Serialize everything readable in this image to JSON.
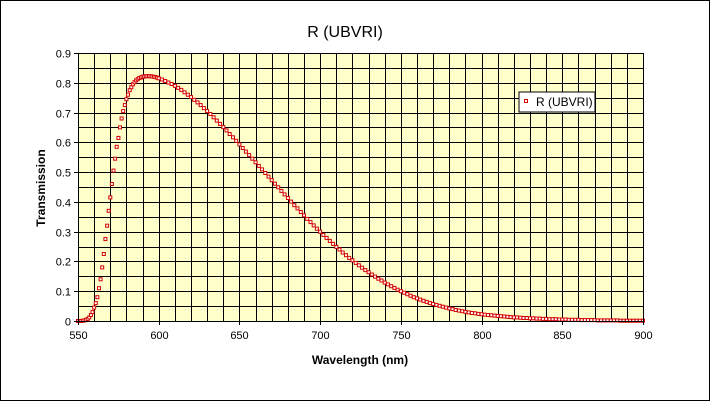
{
  "chart_data": {
    "type": "scatter",
    "title": "R (UBVRI)",
    "xlabel": "Wavelength (nm)",
    "ylabel": "Transmission",
    "xlim": [
      550,
      900
    ],
    "ylim": [
      0,
      0.9
    ],
    "x_ticks": [
      550,
      600,
      650,
      700,
      750,
      800,
      850,
      900
    ],
    "y_ticks": [
      0,
      0.1,
      0.2,
      0.3,
      0.4,
      0.5,
      0.6,
      0.7,
      0.8,
      0.9
    ],
    "y_tick_labels": [
      "0",
      "0.1",
      "0.2",
      "0.3",
      "0.4",
      "0.5",
      "0.6",
      "0.7",
      "0.8",
      "0.9"
    ],
    "x_minor_step": 10,
    "y_minor_step": 0.05,
    "grid": true,
    "legend": {
      "position": "upper-right",
      "entries": [
        "R (UBVRI)"
      ]
    },
    "colors": {
      "plot_background": "#ffffcc",
      "series": "#d40000"
    },
    "series": [
      {
        "name": "R (UBVRI)",
        "x": [
          550,
          551,
          552,
          553,
          554,
          555,
          556,
          557,
          558,
          559,
          560,
          561,
          562,
          563,
          564,
          565,
          566,
          567,
          568,
          569,
          570,
          571,
          572,
          573,
          574,
          575,
          576,
          577,
          578,
          579,
          580,
          581,
          582,
          583,
          584,
          585,
          586,
          587,
          588,
          589,
          590,
          591,
          592,
          593,
          594,
          595,
          596,
          597,
          598,
          599,
          600,
          602,
          604,
          606,
          608,
          610,
          612,
          614,
          616,
          618,
          620,
          622,
          624,
          626,
          628,
          630,
          632,
          634,
          636,
          638,
          640,
          642,
          644,
          646,
          648,
          650,
          652,
          654,
          656,
          658,
          660,
          662,
          664,
          666,
          668,
          670,
          672,
          674,
          676,
          678,
          680,
          682,
          684,
          686,
          688,
          690,
          692,
          694,
          696,
          698,
          700,
          702,
          704,
          706,
          708,
          710,
          712,
          714,
          716,
          718,
          720,
          722,
          724,
          726,
          728,
          730,
          732,
          734,
          736,
          738,
          740,
          742,
          744,
          746,
          748,
          750,
          752,
          754,
          756,
          758,
          760,
          762,
          764,
          766,
          768,
          770,
          772,
          774,
          776,
          778,
          780,
          782,
          784,
          786,
          788,
          790,
          792,
          794,
          796,
          798,
          800,
          802,
          804,
          806,
          808,
          810,
          812,
          814,
          816,
          818,
          820,
          822,
          824,
          826,
          828,
          830,
          832,
          834,
          836,
          838,
          840,
          842,
          844,
          846,
          848,
          850,
          852,
          854,
          856,
          858,
          860,
          862,
          864,
          866,
          868,
          870,
          872,
          874,
          876,
          878,
          880,
          882,
          884,
          886,
          888,
          890,
          892,
          894,
          896,
          898,
          900
        ],
        "y": [
          0.0,
          0.0,
          0.0,
          0.001,
          0.002,
          0.004,
          0.007,
          0.012,
          0.02,
          0.03,
          0.045,
          0.06,
          0.08,
          0.11,
          0.14,
          0.18,
          0.225,
          0.275,
          0.32,
          0.37,
          0.415,
          0.46,
          0.505,
          0.545,
          0.585,
          0.615,
          0.65,
          0.68,
          0.705,
          0.725,
          0.745,
          0.76,
          0.775,
          0.785,
          0.795,
          0.802,
          0.808,
          0.812,
          0.816,
          0.818,
          0.82,
          0.821,
          0.822,
          0.822,
          0.822,
          0.822,
          0.821,
          0.82,
          0.819,
          0.817,
          0.815,
          0.811,
          0.806,
          0.801,
          0.796,
          0.79,
          0.783,
          0.776,
          0.768,
          0.76,
          0.752,
          0.743,
          0.734,
          0.725,
          0.715,
          0.705,
          0.695,
          0.684,
          0.673,
          0.662,
          0.651,
          0.64,
          0.628,
          0.617,
          0.605,
          0.593,
          0.581,
          0.569,
          0.557,
          0.545,
          0.533,
          0.521,
          0.509,
          0.497,
          0.485,
          0.473,
          0.461,
          0.449,
          0.437,
          0.425,
          0.413,
          0.401,
          0.389,
          0.378,
          0.366,
          0.355,
          0.343,
          0.332,
          0.321,
          0.31,
          0.3,
          0.289,
          0.279,
          0.269,
          0.259,
          0.249,
          0.24,
          0.23,
          0.221,
          0.212,
          0.204,
          0.195,
          0.187,
          0.179,
          0.171,
          0.164,
          0.156,
          0.149,
          0.142,
          0.136,
          0.129,
          0.123,
          0.117,
          0.111,
          0.105,
          0.1,
          0.095,
          0.09,
          0.085,
          0.08,
          0.076,
          0.072,
          0.068,
          0.064,
          0.06,
          0.057,
          0.054,
          0.051,
          0.048,
          0.045,
          0.042,
          0.04,
          0.037,
          0.035,
          0.033,
          0.031,
          0.029,
          0.027,
          0.026,
          0.024,
          0.023,
          0.021,
          0.02,
          0.019,
          0.018,
          0.017,
          0.016,
          0.015,
          0.014,
          0.013,
          0.012,
          0.012,
          0.011,
          0.01,
          0.01,
          0.009,
          0.009,
          0.008,
          0.008,
          0.007,
          0.007,
          0.006,
          0.006,
          0.006,
          0.005,
          0.005,
          0.005,
          0.004,
          0.004,
          0.004,
          0.004,
          0.003,
          0.003,
          0.003,
          0.003,
          0.003,
          0.002,
          0.002,
          0.002,
          0.002,
          0.002,
          0.002,
          0.002,
          0.001,
          0.001,
          0.001,
          0.001,
          0.001,
          0.001,
          0.001,
          0.001
        ]
      }
    ]
  }
}
